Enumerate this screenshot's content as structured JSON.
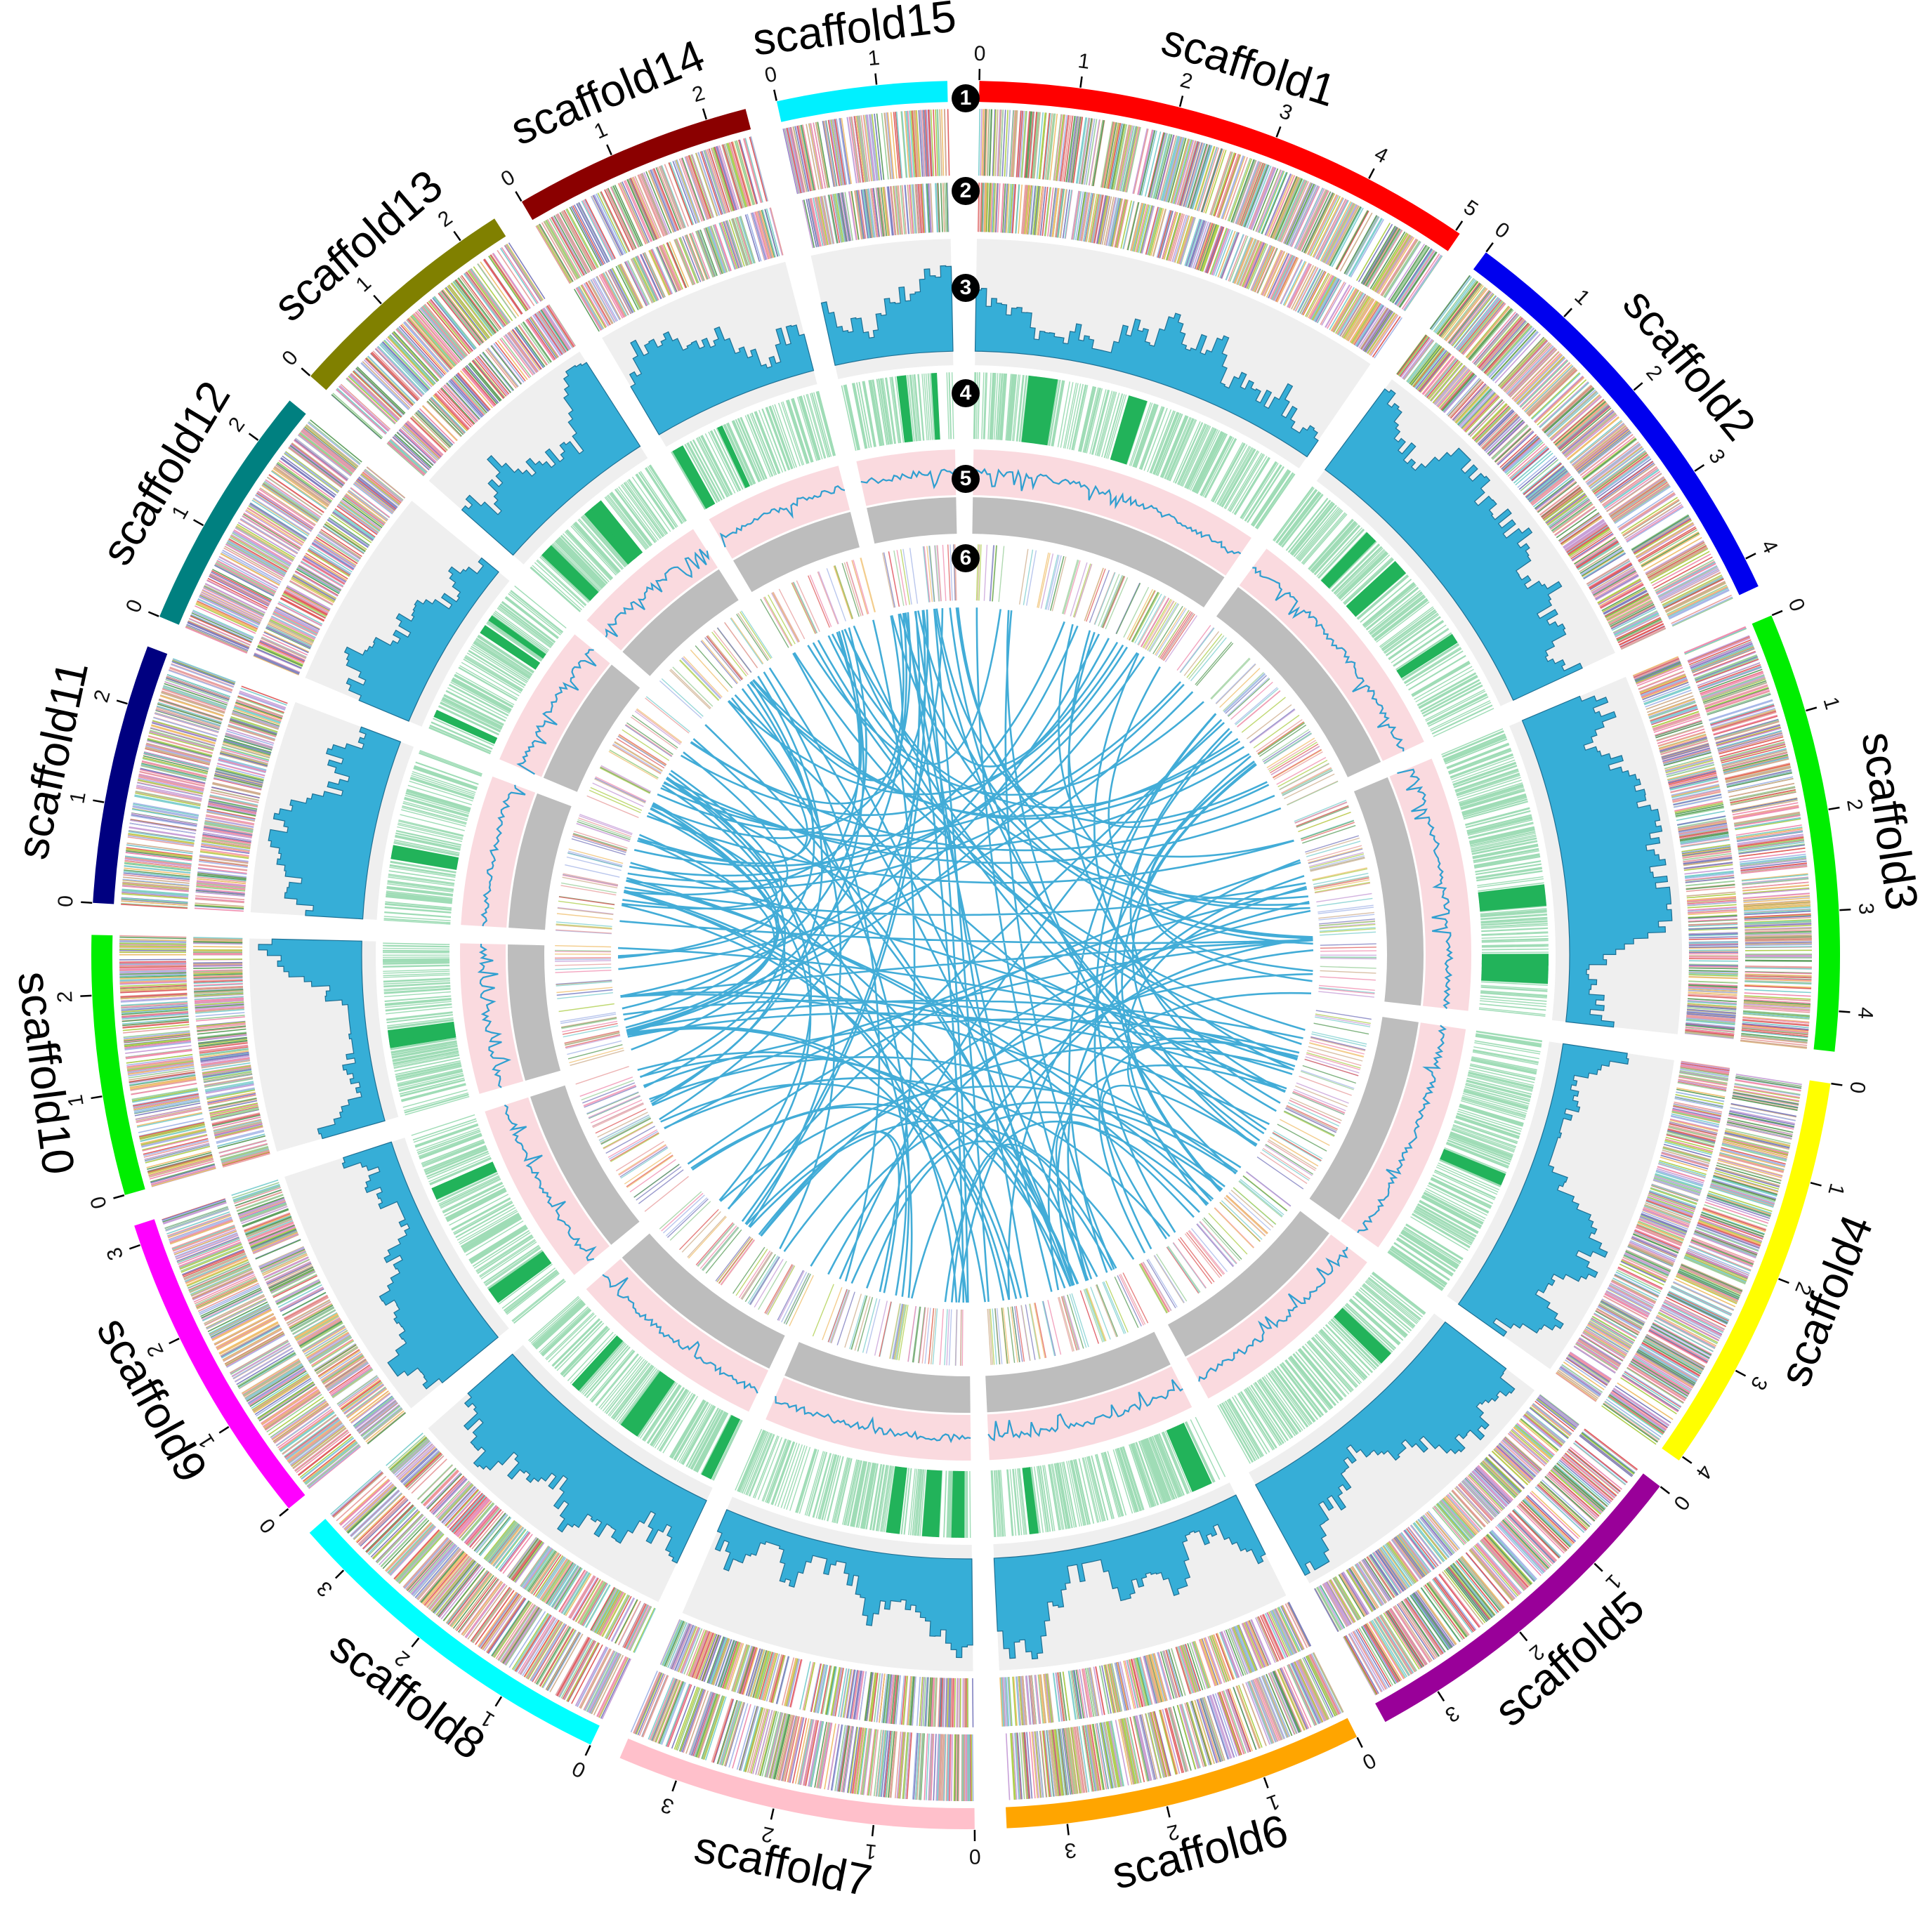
{
  "chart_data": {
    "type": "circos",
    "title": "",
    "track_markers": [
      "1",
      "2",
      "3",
      "4",
      "5",
      "6"
    ],
    "scaffolds": [
      {
        "name": "scaffold1",
        "length": 5.05,
        "ticks": [
          0,
          1,
          2,
          3,
          4,
          5
        ],
        "color": "#ff0000"
      },
      {
        "name": "scaffold2",
        "length": 4.3,
        "ticks": [
          0,
          1,
          2,
          3,
          4
        ],
        "color": "#0000ee"
      },
      {
        "name": "scaffold3",
        "length": 4.4,
        "ticks": [
          0,
          1,
          2,
          3,
          4
        ],
        "color": "#00ee00"
      },
      {
        "name": "scaffold4",
        "length": 4.05,
        "ticks": [
          0,
          1,
          2,
          3,
          4
        ],
        "color": "#ffff00"
      },
      {
        "name": "scaffold5",
        "length": 3.6,
        "ticks": [
          0,
          1,
          2,
          3
        ],
        "color": "#990099"
      },
      {
        "name": "scaffold6",
        "length": 3.6,
        "ticks": [
          0,
          1,
          2,
          3
        ],
        "color": "#ffa500"
      },
      {
        "name": "scaffold7",
        "length": 3.6,
        "ticks": [
          0,
          1,
          2,
          3
        ],
        "color": "#ffc0cb"
      },
      {
        "name": "scaffold8",
        "length": 3.5,
        "ticks": [
          0,
          1,
          2,
          3
        ],
        "color": "#00ffff"
      },
      {
        "name": "scaffold9",
        "length": 3.2,
        "ticks": [
          0,
          1,
          2,
          3
        ],
        "color": "#ff00ff"
      },
      {
        "name": "scaffold10",
        "length": 2.6,
        "ticks": [
          0,
          1,
          2
        ],
        "color": "#00ee00"
      },
      {
        "name": "scaffold11",
        "length": 2.6,
        "ticks": [
          0,
          1,
          2
        ],
        "color": "#000080"
      },
      {
        "name": "scaffold12",
        "length": 2.5,
        "ticks": [
          0,
          1,
          2
        ],
        "color": "#008080"
      },
      {
        "name": "scaffold13",
        "length": 2.4,
        "ticks": [
          0,
          1,
          2
        ],
        "color": "#808000"
      },
      {
        "name": "scaffold14",
        "length": 2.4,
        "ticks": [
          0,
          1,
          2
        ],
        "color": "#8b0000"
      },
      {
        "name": "scaffold15",
        "length": 1.7,
        "ticks": [
          0,
          1
        ],
        "color": "#00f0ff"
      }
    ],
    "colors": {
      "histogram": "#36aed7",
      "histogram_background": "#efefef",
      "density_line": "#2f9fd0",
      "density_background": "#fadadf",
      "gray_band": "#bdbdbd",
      "gene_density": "#22b35a",
      "links": "#2ea3d3"
    }
  }
}
